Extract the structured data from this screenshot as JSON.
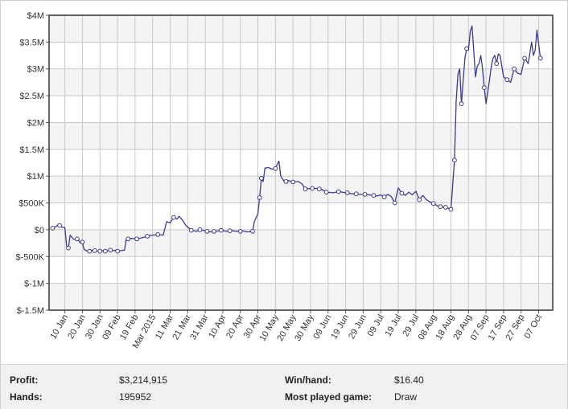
{
  "chart_data": {
    "type": "line",
    "title": "",
    "xlabel": "",
    "ylabel": "",
    "ylim": [
      -1500000,
      4000000
    ],
    "yticks": [
      {
        "value": -1500000,
        "label": "$-1.5M"
      },
      {
        "value": -1000000,
        "label": "$-1M"
      },
      {
        "value": -500000,
        "label": "$-500K"
      },
      {
        "value": 0,
        "label": "$0"
      },
      {
        "value": 500000,
        "label": "$500K"
      },
      {
        "value": 1000000,
        "label": "$1M"
      },
      {
        "value": 1500000,
        "label": "$1.5M"
      },
      {
        "value": 2000000,
        "label": "$2M"
      },
      {
        "value": 2500000,
        "label": "$2.5M"
      },
      {
        "value": 3000000,
        "label": "$3M"
      },
      {
        "value": 3500000,
        "label": "$3.5M"
      },
      {
        "value": 4000000,
        "label": "$4M"
      }
    ],
    "xlim": [
      "2015-01-01",
      "2015-10-15"
    ],
    "xticks": [
      {
        "date": "2015-01-10",
        "label": "10 Jan"
      },
      {
        "date": "2015-01-20",
        "label": "20 Jan"
      },
      {
        "date": "2015-01-30",
        "label": "30 Jan"
      },
      {
        "date": "2015-02-09",
        "label": "09 Feb"
      },
      {
        "date": "2015-02-19",
        "label": "19 Feb"
      },
      {
        "date": "2015-03-01",
        "label": "Mar 2015"
      },
      {
        "date": "2015-03-11",
        "label": "11 Mar"
      },
      {
        "date": "2015-03-21",
        "label": "21 Mar"
      },
      {
        "date": "2015-03-31",
        "label": "31 Mar"
      },
      {
        "date": "2015-04-10",
        "label": "10 Apr"
      },
      {
        "date": "2015-04-20",
        "label": "20 Apr"
      },
      {
        "date": "2015-04-30",
        "label": "30 Apr"
      },
      {
        "date": "2015-05-10",
        "label": "10 May"
      },
      {
        "date": "2015-05-20",
        "label": "20 May"
      },
      {
        "date": "2015-05-30",
        "label": "30 May"
      },
      {
        "date": "2015-06-09",
        "label": "09 Jun"
      },
      {
        "date": "2015-06-19",
        "label": "19 Jun"
      },
      {
        "date": "2015-06-29",
        "label": "29 Jun"
      },
      {
        "date": "2015-07-09",
        "label": "09 Jul"
      },
      {
        "date": "2015-07-19",
        "label": "19 Jul"
      },
      {
        "date": "2015-07-29",
        "label": "29 Jul"
      },
      {
        "date": "2015-08-08",
        "label": "08 Aug"
      },
      {
        "date": "2015-08-18",
        "label": "18 Aug"
      },
      {
        "date": "2015-08-28",
        "label": "28 Aug"
      },
      {
        "date": "2015-09-07",
        "label": "07 Sep"
      },
      {
        "date": "2015-09-17",
        "label": "17 Sep"
      },
      {
        "date": "2015-09-27",
        "label": "27 Sep"
      },
      {
        "date": "2015-10-07",
        "label": "07 Oct"
      }
    ],
    "grid": true,
    "legend": "none",
    "series": [
      {
        "color": "#3b3b8f",
        "points": [
          [
            "2015-01-02",
            20000
          ],
          [
            "2015-01-05",
            60000
          ],
          [
            "2015-01-06",
            90000
          ],
          [
            "2015-01-08",
            50000
          ],
          [
            "2015-01-10",
            40000
          ],
          [
            "2015-01-11",
            -300000
          ],
          [
            "2015-01-12",
            -340000
          ],
          [
            "2015-01-13",
            -100000
          ],
          [
            "2015-01-15",
            -180000
          ],
          [
            "2015-01-17",
            -170000
          ],
          [
            "2015-01-19",
            -250000
          ],
          [
            "2015-01-20",
            -230000
          ],
          [
            "2015-01-21",
            -370000
          ],
          [
            "2015-01-23",
            -400000
          ],
          [
            "2015-01-25",
            -380000
          ],
          [
            "2015-01-27",
            -390000
          ],
          [
            "2015-01-29",
            -400000
          ],
          [
            "2015-01-31",
            -390000
          ],
          [
            "2015-02-02",
            -400000
          ],
          [
            "2015-02-05",
            -380000
          ],
          [
            "2015-02-07",
            -390000
          ],
          [
            "2015-02-08",
            -380000
          ],
          [
            "2015-02-09",
            -400000
          ],
          [
            "2015-02-11",
            -390000
          ],
          [
            "2015-02-13",
            -380000
          ],
          [
            "2015-02-14",
            -170000
          ],
          [
            "2015-02-17",
            -160000
          ],
          [
            "2015-02-20",
            -170000
          ],
          [
            "2015-02-23",
            -150000
          ],
          [
            "2015-02-26",
            -120000
          ],
          [
            "2015-03-01",
            -100000
          ],
          [
            "2015-03-04",
            -90000
          ],
          [
            "2015-03-07",
            -100000
          ],
          [
            "2015-03-09",
            150000
          ],
          [
            "2015-03-11",
            130000
          ],
          [
            "2015-03-13",
            230000
          ],
          [
            "2015-03-15",
            200000
          ],
          [
            "2015-03-16",
            250000
          ],
          [
            "2015-03-18",
            180000
          ],
          [
            "2015-03-20",
            80000
          ],
          [
            "2015-03-23",
            -10000
          ],
          [
            "2015-03-26",
            -30000
          ],
          [
            "2015-03-28",
            0
          ],
          [
            "2015-03-31",
            -20000
          ],
          [
            "2015-04-03",
            -40000
          ],
          [
            "2015-04-06",
            -30000
          ],
          [
            "2015-04-09",
            -10000
          ],
          [
            "2015-04-12",
            -30000
          ],
          [
            "2015-04-15",
            -20000
          ],
          [
            "2015-04-18",
            -30000
          ],
          [
            "2015-04-21",
            -20000
          ],
          [
            "2015-04-24",
            -40000
          ],
          [
            "2015-04-27",
            -30000
          ],
          [
            "2015-04-28",
            150000
          ],
          [
            "2015-04-30",
            300000
          ],
          [
            "2015-05-01",
            600000
          ],
          [
            "2015-05-02",
            960000
          ],
          [
            "2015-05-03",
            900000
          ],
          [
            "2015-05-04",
            1150000
          ],
          [
            "2015-05-06",
            1160000
          ],
          [
            "2015-05-08",
            1130000
          ],
          [
            "2015-05-10",
            1140000
          ],
          [
            "2015-05-11",
            1220000
          ],
          [
            "2015-05-12",
            1280000
          ],
          [
            "2015-05-13",
            1000000
          ],
          [
            "2015-05-15",
            900000
          ],
          [
            "2015-05-17",
            920000
          ],
          [
            "2015-05-20",
            890000
          ],
          [
            "2015-05-23",
            900000
          ],
          [
            "2015-05-25",
            860000
          ],
          [
            "2015-05-27",
            760000
          ],
          [
            "2015-05-30",
            770000
          ],
          [
            "2015-06-02",
            770000
          ],
          [
            "2015-06-05",
            760000
          ],
          [
            "2015-06-08",
            700000
          ],
          [
            "2015-06-12",
            690000
          ],
          [
            "2015-06-15",
            710000
          ],
          [
            "2015-06-19",
            690000
          ],
          [
            "2015-06-23",
            670000
          ],
          [
            "2015-06-27",
            660000
          ],
          [
            "2015-07-01",
            660000
          ],
          [
            "2015-07-04",
            640000
          ],
          [
            "2015-07-07",
            630000
          ],
          [
            "2015-07-09",
            650000
          ],
          [
            "2015-07-11",
            610000
          ],
          [
            "2015-07-13",
            660000
          ],
          [
            "2015-07-15",
            620000
          ],
          [
            "2015-07-17",
            500000
          ],
          [
            "2015-07-19",
            780000
          ],
          [
            "2015-07-21",
            680000
          ],
          [
            "2015-07-23",
            640000
          ],
          [
            "2015-07-25",
            700000
          ],
          [
            "2015-07-27",
            650000
          ],
          [
            "2015-07-29",
            720000
          ],
          [
            "2015-07-31",
            560000
          ],
          [
            "2015-08-02",
            640000
          ],
          [
            "2015-08-04",
            560000
          ],
          [
            "2015-08-06",
            520000
          ],
          [
            "2015-08-08",
            490000
          ],
          [
            "2015-08-11",
            430000
          ],
          [
            "2015-08-14",
            420000
          ],
          [
            "2015-08-17",
            400000
          ],
          [
            "2015-08-18",
            380000
          ],
          [
            "2015-08-20",
            1300000
          ],
          [
            "2015-08-21",
            2400000
          ],
          [
            "2015-08-22",
            2900000
          ],
          [
            "2015-08-23",
            3000000
          ],
          [
            "2015-08-24",
            2350000
          ],
          [
            "2015-08-25",
            2800000
          ],
          [
            "2015-08-26",
            3200000
          ],
          [
            "2015-08-27",
            3380000
          ],
          [
            "2015-08-28",
            3350000
          ],
          [
            "2015-08-29",
            3700000
          ],
          [
            "2015-08-30",
            3800000
          ],
          [
            "2015-08-31",
            3350000
          ],
          [
            "2015-09-01",
            2850000
          ],
          [
            "2015-09-02",
            3050000
          ],
          [
            "2015-09-03",
            3100000
          ],
          [
            "2015-09-04",
            3250000
          ],
          [
            "2015-09-05",
            3000000
          ],
          [
            "2015-09-06",
            2650000
          ],
          [
            "2015-09-07",
            2350000
          ],
          [
            "2015-09-09",
            2800000
          ],
          [
            "2015-09-10",
            3050000
          ],
          [
            "2015-09-11",
            3200000
          ],
          [
            "2015-09-12",
            3250000
          ],
          [
            "2015-09-13",
            3100000
          ],
          [
            "2015-09-14",
            3280000
          ],
          [
            "2015-09-15",
            3250000
          ],
          [
            "2015-09-17",
            2850000
          ],
          [
            "2015-09-19",
            2800000
          ],
          [
            "2015-09-21",
            2750000
          ],
          [
            "2015-09-23",
            3000000
          ],
          [
            "2015-09-25",
            2920000
          ],
          [
            "2015-09-27",
            2900000
          ],
          [
            "2015-09-29",
            3200000
          ],
          [
            "2015-10-01",
            3100000
          ],
          [
            "2015-10-03",
            3500000
          ],
          [
            "2015-10-04",
            3250000
          ],
          [
            "2015-10-05",
            3350000
          ],
          [
            "2015-10-06",
            3720000
          ],
          [
            "2015-10-08",
            3200000
          ]
        ],
        "markers": [
          [
            "2015-01-03",
            30000
          ],
          [
            "2015-01-07",
            80000
          ],
          [
            "2015-01-12",
            -340000
          ],
          [
            "2015-01-17",
            -170000
          ],
          [
            "2015-01-20",
            -230000
          ],
          [
            "2015-01-24",
            -400000
          ],
          [
            "2015-01-27",
            -390000
          ],
          [
            "2015-01-30",
            -400000
          ],
          [
            "2015-02-02",
            -400000
          ],
          [
            "2015-02-05",
            -380000
          ],
          [
            "2015-02-09",
            -400000
          ],
          [
            "2015-02-15",
            -170000
          ],
          [
            "2015-02-20",
            -170000
          ],
          [
            "2015-02-26",
            -120000
          ],
          [
            "2015-03-04",
            -90000
          ],
          [
            "2015-03-13",
            230000
          ],
          [
            "2015-03-23",
            -10000
          ],
          [
            "2015-03-28",
            0
          ],
          [
            "2015-04-01",
            -30000
          ],
          [
            "2015-04-05",
            -30000
          ],
          [
            "2015-04-09",
            -10000
          ],
          [
            "2015-04-14",
            -20000
          ],
          [
            "2015-04-20",
            -30000
          ],
          [
            "2015-04-27",
            -30000
          ],
          [
            "2015-05-01",
            600000
          ],
          [
            "2015-05-02",
            960000
          ],
          [
            "2015-05-10",
            1140000
          ],
          [
            "2015-05-16",
            900000
          ],
          [
            "2015-05-20",
            890000
          ],
          [
            "2015-05-27",
            760000
          ],
          [
            "2015-05-31",
            770000
          ],
          [
            "2015-06-04",
            760000
          ],
          [
            "2015-06-08",
            700000
          ],
          [
            "2015-06-15",
            710000
          ],
          [
            "2015-06-20",
            690000
          ],
          [
            "2015-06-25",
            670000
          ],
          [
            "2015-06-30",
            660000
          ],
          [
            "2015-07-05",
            640000
          ],
          [
            "2015-07-11",
            610000
          ],
          [
            "2015-07-17",
            500000
          ],
          [
            "2015-07-21",
            680000
          ],
          [
            "2015-07-31",
            560000
          ],
          [
            "2015-08-08",
            490000
          ],
          [
            "2015-08-12",
            430000
          ],
          [
            "2015-08-15",
            420000
          ],
          [
            "2015-08-18",
            380000
          ],
          [
            "2015-08-20",
            1300000
          ],
          [
            "2015-08-24",
            2350000
          ],
          [
            "2015-08-27",
            3380000
          ],
          [
            "2015-09-06",
            2650000
          ],
          [
            "2015-09-13",
            3100000
          ],
          [
            "2015-09-19",
            2800000
          ],
          [
            "2015-09-23",
            3000000
          ],
          [
            "2015-09-29",
            3200000
          ],
          [
            "2015-10-08",
            3200000
          ]
        ]
      }
    ]
  },
  "stats": {
    "profit_label": "Profit:",
    "profit_value": "$3,214,915",
    "hands_label": "Hands:",
    "hands_value": "195952",
    "win_label": "Win/hand:",
    "win_value": "$16.40",
    "game_label": "Most played game:",
    "game_value": "Draw"
  }
}
